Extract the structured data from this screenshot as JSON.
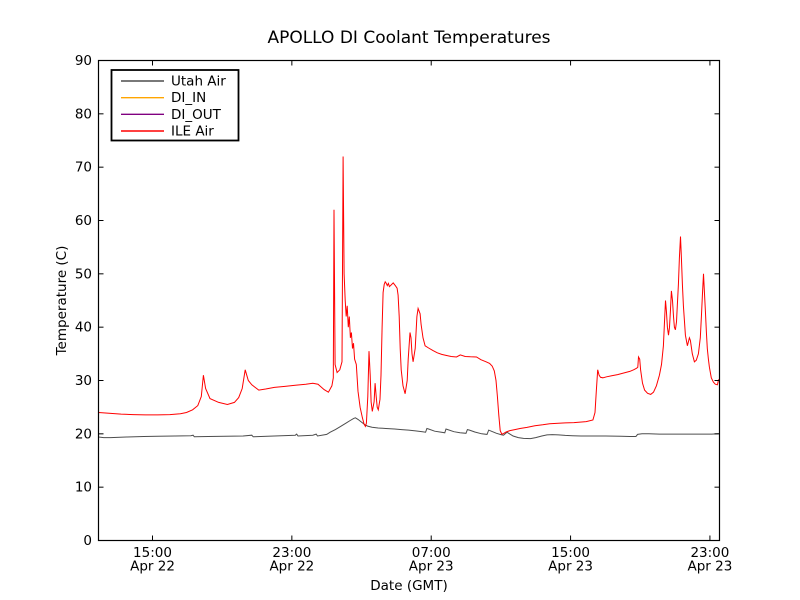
{
  "title": "APOLLO DI Coolant Temperatures",
  "chart_data": {
    "type": "line",
    "title": "APOLLO DI Coolant Temperatures",
    "xlabel": "Date (GMT)",
    "ylabel": "Temperature (C)",
    "ylim": [
      0,
      90
    ],
    "xlim_hours": [
      11.9,
      47.55
    ],
    "grid": false,
    "legend_position": "upper-left",
    "y_ticks": [
      "0",
      "10",
      "20",
      "30",
      "40",
      "50",
      "60",
      "70",
      "80",
      "90"
    ],
    "x_ticks": [
      {
        "t": 15,
        "time": "15:00",
        "date": "Apr 22"
      },
      {
        "t": 23,
        "time": "23:00",
        "date": "Apr 22"
      },
      {
        "t": 31,
        "time": "07:00",
        "date": "Apr 23"
      },
      {
        "t": 39,
        "time": "15:00",
        "date": "Apr 23"
      },
      {
        "t": 47,
        "time": "23:00",
        "date": "Apr 23"
      }
    ],
    "series": [
      {
        "name": "Utah Air",
        "color": "#4d4d4d",
        "points": [
          [
            11.9,
            19.4
          ],
          [
            12.2,
            19.3
          ],
          [
            12.6,
            19.3
          ],
          [
            13.5,
            19.4
          ],
          [
            14.5,
            19.5
          ],
          [
            15.3,
            19.55
          ],
          [
            16.3,
            19.6
          ],
          [
            17.2,
            19.65
          ],
          [
            17.33,
            19.75
          ],
          [
            17.4,
            19.45
          ],
          [
            18.2,
            19.5
          ],
          [
            19.2,
            19.55
          ],
          [
            20.2,
            19.6
          ],
          [
            20.7,
            19.75
          ],
          [
            20.78,
            19.45
          ],
          [
            21.6,
            19.55
          ],
          [
            22.4,
            19.65
          ],
          [
            23.2,
            19.75
          ],
          [
            23.28,
            19.95
          ],
          [
            23.35,
            19.6
          ],
          [
            24.2,
            19.75
          ],
          [
            24.4,
            19.95
          ],
          [
            24.47,
            19.6
          ],
          [
            25.0,
            19.9
          ],
          [
            25.2,
            20.3
          ],
          [
            25.5,
            20.8
          ],
          [
            25.8,
            21.4
          ],
          [
            26.1,
            22.0
          ],
          [
            26.35,
            22.5
          ],
          [
            26.55,
            22.9
          ],
          [
            26.65,
            23.0
          ],
          [
            26.8,
            22.7
          ],
          [
            27.0,
            22.2
          ],
          [
            27.2,
            21.7
          ],
          [
            27.35,
            21.45
          ],
          [
            27.6,
            21.25
          ],
          [
            27.95,
            21.1
          ],
          [
            28.4,
            21.0
          ],
          [
            28.9,
            20.9
          ],
          [
            29.3,
            20.8
          ],
          [
            29.7,
            20.7
          ],
          [
            30.1,
            20.55
          ],
          [
            30.5,
            20.4
          ],
          [
            30.68,
            20.3
          ],
          [
            30.75,
            21.0
          ],
          [
            30.85,
            20.9
          ],
          [
            31.2,
            20.5
          ],
          [
            31.5,
            20.35
          ],
          [
            31.78,
            20.2
          ],
          [
            31.85,
            20.9
          ],
          [
            31.95,
            20.8
          ],
          [
            32.3,
            20.4
          ],
          [
            32.65,
            20.2
          ],
          [
            33.0,
            20.1
          ],
          [
            33.08,
            20.8
          ],
          [
            33.2,
            20.7
          ],
          [
            33.5,
            20.35
          ],
          [
            33.9,
            20.0
          ],
          [
            34.2,
            19.9
          ],
          [
            34.3,
            20.7
          ],
          [
            34.45,
            20.5
          ],
          [
            34.75,
            20.1
          ],
          [
            35.0,
            19.85
          ],
          [
            35.15,
            19.75
          ],
          [
            35.35,
            20.3
          ],
          [
            35.45,
            20.1
          ],
          [
            35.7,
            19.6
          ],
          [
            36.0,
            19.3
          ],
          [
            36.3,
            19.15
          ],
          [
            36.7,
            19.1
          ],
          [
            37.0,
            19.3
          ],
          [
            37.35,
            19.6
          ],
          [
            37.65,
            19.8
          ],
          [
            37.95,
            19.85
          ],
          [
            38.3,
            19.8
          ],
          [
            38.7,
            19.7
          ],
          [
            39.1,
            19.65
          ],
          [
            39.6,
            19.6
          ],
          [
            40.2,
            19.6
          ],
          [
            41.0,
            19.6
          ],
          [
            41.9,
            19.55
          ],
          [
            42.4,
            19.5
          ],
          [
            42.75,
            19.5
          ],
          [
            42.85,
            19.9
          ],
          [
            43.1,
            20.0
          ],
          [
            43.5,
            20.0
          ],
          [
            44.1,
            19.95
          ],
          [
            44.7,
            19.95
          ],
          [
            45.3,
            19.95
          ],
          [
            45.9,
            19.95
          ],
          [
            46.5,
            19.95
          ],
          [
            47.1,
            19.95
          ],
          [
            47.5,
            20.0
          ]
        ]
      },
      {
        "name": "DI_IN",
        "color": "#ffa500",
        "points": []
      },
      {
        "name": "DI_OUT",
        "color": "#800080",
        "points": []
      },
      {
        "name": "ILE Air",
        "color": "#ff0000",
        "points": [
          [
            11.9,
            24.0
          ],
          [
            12.5,
            23.85
          ],
          [
            13.2,
            23.7
          ],
          [
            13.9,
            23.6
          ],
          [
            14.6,
            23.55
          ],
          [
            15.3,
            23.55
          ],
          [
            16.0,
            23.6
          ],
          [
            16.6,
            23.75
          ],
          [
            16.95,
            24.0
          ],
          [
            17.3,
            24.5
          ],
          [
            17.6,
            25.3
          ],
          [
            17.8,
            27.0
          ],
          [
            17.92,
            31.0
          ],
          [
            18.05,
            28.5
          ],
          [
            18.3,
            26.6
          ],
          [
            18.8,
            25.9
          ],
          [
            19.3,
            25.5
          ],
          [
            19.7,
            25.9
          ],
          [
            19.95,
            26.8
          ],
          [
            20.15,
            28.5
          ],
          [
            20.32,
            32.0
          ],
          [
            20.5,
            30.0
          ],
          [
            20.7,
            29.2
          ],
          [
            21.1,
            28.2
          ],
          [
            21.5,
            28.4
          ],
          [
            22.0,
            28.7
          ],
          [
            22.6,
            28.9
          ],
          [
            23.2,
            29.1
          ],
          [
            23.8,
            29.3
          ],
          [
            24.2,
            29.5
          ],
          [
            24.5,
            29.3
          ],
          [
            24.85,
            28.3
          ],
          [
            25.1,
            27.8
          ],
          [
            25.3,
            29.0
          ],
          [
            25.38,
            30.5
          ],
          [
            25.42,
            62.0
          ],
          [
            25.48,
            33.0
          ],
          [
            25.6,
            31.5
          ],
          [
            25.75,
            32.0
          ],
          [
            25.88,
            33.5
          ],
          [
            25.94,
            72.0
          ],
          [
            26.0,
            50.0
          ],
          [
            26.06,
            45.0
          ],
          [
            26.12,
            42.0
          ],
          [
            26.18,
            44.0
          ],
          [
            26.24,
            40.0
          ],
          [
            26.3,
            42.0
          ],
          [
            26.36,
            38.0
          ],
          [
            26.42,
            39.0
          ],
          [
            26.48,
            36.0
          ],
          [
            26.54,
            37.0
          ],
          [
            26.6,
            34.0
          ],
          [
            26.7,
            33.0
          ],
          [
            26.8,
            28.0
          ],
          [
            26.92,
            25.0
          ],
          [
            27.05,
            23.0
          ],
          [
            27.15,
            21.8
          ],
          [
            27.22,
            21.4
          ],
          [
            27.28,
            22.0
          ],
          [
            27.36,
            27.0
          ],
          [
            27.43,
            35.5
          ],
          [
            27.5,
            31.0
          ],
          [
            27.55,
            26.0
          ],
          [
            27.62,
            24.2
          ],
          [
            27.72,
            26.0
          ],
          [
            27.78,
            29.5
          ],
          [
            27.84,
            27.0
          ],
          [
            27.9,
            25.0
          ],
          [
            27.96,
            24.5
          ],
          [
            28.06,
            26.5
          ],
          [
            28.12,
            31.0
          ],
          [
            28.18,
            40.0
          ],
          [
            28.24,
            46.5
          ],
          [
            28.3,
            48.0
          ],
          [
            28.36,
            48.5
          ],
          [
            28.42,
            48.2
          ],
          [
            28.48,
            47.8
          ],
          [
            28.54,
            48.2
          ],
          [
            28.6,
            47.6
          ],
          [
            28.7,
            47.9
          ],
          [
            28.82,
            48.3
          ],
          [
            28.94,
            47.8
          ],
          [
            29.04,
            47.3
          ],
          [
            29.1,
            46.0
          ],
          [
            29.16,
            42.0
          ],
          [
            29.22,
            36.0
          ],
          [
            29.28,
            32.0
          ],
          [
            29.38,
            29.0
          ],
          [
            29.5,
            27.5
          ],
          [
            29.62,
            30.0
          ],
          [
            29.68,
            34.0
          ],
          [
            29.78,
            39.0
          ],
          [
            29.84,
            38.0
          ],
          [
            29.9,
            35.0
          ],
          [
            29.96,
            33.5
          ],
          [
            30.08,
            36.0
          ],
          [
            30.18,
            42.0
          ],
          [
            30.25,
            43.5
          ],
          [
            30.36,
            42.5
          ],
          [
            30.42,
            40.5
          ],
          [
            30.53,
            38.0
          ],
          [
            30.65,
            36.5
          ],
          [
            30.85,
            36.1
          ],
          [
            31.1,
            35.6
          ],
          [
            31.35,
            35.2
          ],
          [
            31.6,
            34.9
          ],
          [
            31.85,
            34.7
          ],
          [
            32.15,
            34.5
          ],
          [
            32.45,
            34.4
          ],
          [
            32.67,
            34.8
          ],
          [
            32.95,
            34.5
          ],
          [
            33.25,
            34.45
          ],
          [
            33.6,
            34.4
          ],
          [
            33.85,
            33.9
          ],
          [
            34.15,
            33.5
          ],
          [
            34.35,
            33.2
          ],
          [
            34.5,
            32.7
          ],
          [
            34.62,
            31.8
          ],
          [
            34.72,
            30.0
          ],
          [
            34.8,
            27.0
          ],
          [
            34.88,
            23.5
          ],
          [
            34.96,
            20.6
          ],
          [
            35.05,
            19.95
          ],
          [
            35.15,
            20.05
          ],
          [
            35.3,
            20.35
          ],
          [
            35.52,
            20.6
          ],
          [
            35.8,
            20.8
          ],
          [
            36.1,
            21.0
          ],
          [
            36.5,
            21.2
          ],
          [
            36.95,
            21.5
          ],
          [
            37.4,
            21.7
          ],
          [
            37.8,
            21.9
          ],
          [
            38.3,
            22.0
          ],
          [
            38.7,
            22.05
          ],
          [
            39.2,
            22.1
          ],
          [
            39.9,
            22.3
          ],
          [
            40.28,
            22.6
          ],
          [
            40.4,
            24.0
          ],
          [
            40.48,
            28.0
          ],
          [
            40.56,
            32.0
          ],
          [
            40.64,
            31.0
          ],
          [
            40.72,
            30.6
          ],
          [
            40.85,
            30.5
          ],
          [
            41.07,
            30.7
          ],
          [
            41.36,
            30.9
          ],
          [
            41.7,
            31.1
          ],
          [
            42.05,
            31.4
          ],
          [
            42.4,
            31.7
          ],
          [
            42.62,
            32.0
          ],
          [
            42.79,
            32.3
          ],
          [
            42.86,
            32.5
          ],
          [
            42.9,
            34.4
          ],
          [
            42.97,
            34.0
          ],
          [
            43.02,
            32.0
          ],
          [
            43.13,
            29.5
          ],
          [
            43.25,
            28.2
          ],
          [
            43.42,
            27.6
          ],
          [
            43.6,
            27.4
          ],
          [
            43.76,
            27.8
          ],
          [
            43.93,
            29.0
          ],
          [
            44.1,
            31.0
          ],
          [
            44.22,
            33.0
          ],
          [
            44.33,
            36.5
          ],
          [
            44.39,
            41.0
          ],
          [
            44.45,
            45.0
          ],
          [
            44.5,
            43.0
          ],
          [
            44.56,
            40.0
          ],
          [
            44.62,
            38.5
          ],
          [
            44.68,
            40.0
          ],
          [
            44.73,
            43.0
          ],
          [
            44.79,
            46.8
          ],
          [
            44.85,
            45.0
          ],
          [
            44.91,
            42.0
          ],
          [
            44.96,
            40.0
          ],
          [
            45.02,
            39.5
          ],
          [
            45.08,
            41.0
          ],
          [
            45.13,
            44.0
          ],
          [
            45.19,
            48.0
          ],
          [
            45.25,
            53.0
          ],
          [
            45.31,
            57.0
          ],
          [
            45.36,
            53.0
          ],
          [
            45.42,
            48.0
          ],
          [
            45.48,
            44.0
          ],
          [
            45.54,
            41.0
          ],
          [
            45.59,
            38.5
          ],
          [
            45.71,
            36.5
          ],
          [
            45.82,
            38.0
          ],
          [
            45.88,
            37.5
          ],
          [
            45.99,
            35.0
          ],
          [
            46.11,
            33.5
          ],
          [
            46.22,
            33.8
          ],
          [
            46.34,
            35.0
          ],
          [
            46.45,
            38.0
          ],
          [
            46.51,
            42.0
          ],
          [
            46.57,
            46.0
          ],
          [
            46.63,
            50.0
          ],
          [
            46.68,
            47.0
          ],
          [
            46.74,
            43.0
          ],
          [
            46.8,
            39.0
          ],
          [
            46.85,
            36.0
          ],
          [
            46.91,
            34.0
          ],
          [
            46.97,
            32.5
          ],
          [
            47.08,
            30.5
          ],
          [
            47.2,
            29.7
          ],
          [
            47.31,
            29.3
          ],
          [
            47.43,
            29.2
          ],
          [
            47.5,
            30.2
          ]
        ]
      }
    ]
  }
}
